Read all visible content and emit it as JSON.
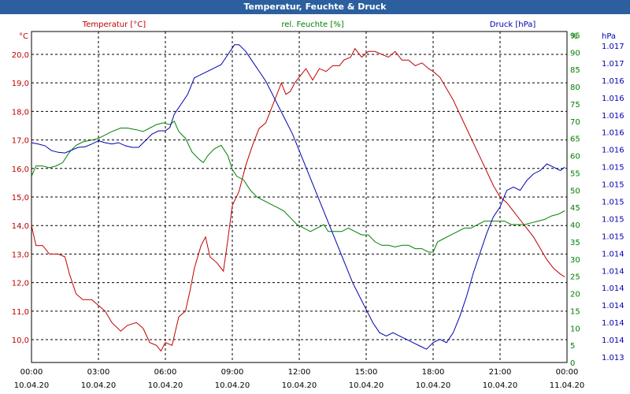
{
  "chart_data": {
    "type": "line",
    "title": "Temperatur, Feuchte & Druck",
    "x_tick_times": [
      "00:00",
      "03:00",
      "06:00",
      "09:00",
      "12:00",
      "15:00",
      "18:00",
      "21:00",
      "00:00"
    ],
    "x_tick_dates": [
      "10.04.20",
      "10.04.20",
      "10.04.20",
      "10.04.20",
      "10.04.20",
      "10.04.20",
      "10.04.20",
      "10.04.20",
      "11.04.20"
    ],
    "x_range_hours": [
      0,
      24
    ],
    "grid": true,
    "axes": {
      "temperature": {
        "label": "Temperatur [°C]",
        "unit": "°C",
        "ticks": [
          "10,0",
          "11,0",
          "12,0",
          "13,0",
          "14,0",
          "15,0",
          "16,0",
          "17,0",
          "18,0",
          "19,0",
          "20,0"
        ],
        "range": [
          9.2,
          20.8
        ],
        "color": "#c00000"
      },
      "humidity": {
        "label": "rel. Feuchte [%]",
        "unit": "%",
        "ticks": [
          "0",
          "5",
          "10",
          "15",
          "20",
          "25",
          "30",
          "35",
          "40",
          "45",
          "50",
          "55",
          "60",
          "65",
          "70",
          "75",
          "80",
          "85",
          "90",
          "95"
        ],
        "range": [
          0,
          96
        ],
        "color": "#008000"
      },
      "pressure": {
        "label": "Druck [hPa]",
        "unit": "hPa",
        "ticks": [
          "1.013",
          "1.014",
          "1.014",
          "1.014",
          "1.014",
          "1.014",
          "1.014",
          "1.015",
          "1.015",
          "1.015",
          "1.015",
          "1.015",
          "1.016",
          "1.016",
          "1.016",
          "1.016",
          "1.016",
          "1.017",
          "1.017"
        ],
        "color": "#0000b0"
      }
    },
    "series": [
      {
        "name": "Temperatur [°C]",
        "axis": "temperature",
        "color": "#c00000",
        "points": [
          [
            0,
            14.0
          ],
          [
            0.2,
            13.3
          ],
          [
            0.5,
            13.3
          ],
          [
            0.8,
            13.0
          ],
          [
            1.2,
            13.0
          ],
          [
            1.5,
            12.9
          ],
          [
            1.7,
            12.3
          ],
          [
            2.0,
            11.6
          ],
          [
            2.3,
            11.4
          ],
          [
            2.7,
            11.4
          ],
          [
            3.0,
            11.2
          ],
          [
            3.3,
            11.0
          ],
          [
            3.6,
            10.6
          ],
          [
            4.0,
            10.3
          ],
          [
            4.3,
            10.5
          ],
          [
            4.7,
            10.6
          ],
          [
            5.0,
            10.4
          ],
          [
            5.3,
            9.9
          ],
          [
            5.6,
            9.8
          ],
          [
            5.8,
            9.6
          ],
          [
            6.0,
            9.9
          ],
          [
            6.3,
            9.8
          ],
          [
            6.6,
            10.8
          ],
          [
            6.9,
            11.0
          ],
          [
            7.1,
            11.7
          ],
          [
            7.3,
            12.5
          ],
          [
            7.6,
            13.3
          ],
          [
            7.8,
            13.6
          ],
          [
            8.0,
            12.9
          ],
          [
            8.3,
            12.7
          ],
          [
            8.6,
            12.4
          ],
          [
            8.8,
            13.5
          ],
          [
            9.0,
            14.7
          ],
          [
            9.3,
            15.2
          ],
          [
            9.6,
            16.1
          ],
          [
            9.9,
            16.8
          ],
          [
            10.2,
            17.4
          ],
          [
            10.5,
            17.6
          ],
          [
            10.8,
            18.2
          ],
          [
            11.0,
            18.6
          ],
          [
            11.2,
            19.0
          ],
          [
            11.4,
            18.6
          ],
          [
            11.6,
            18.7
          ],
          [
            11.8,
            19.0
          ],
          [
            12.0,
            19.2
          ],
          [
            12.3,
            19.5
          ],
          [
            12.6,
            19.1
          ],
          [
            12.9,
            19.5
          ],
          [
            13.2,
            19.4
          ],
          [
            13.5,
            19.6
          ],
          [
            13.8,
            19.6
          ],
          [
            14.0,
            19.8
          ],
          [
            14.3,
            19.9
          ],
          [
            14.5,
            20.2
          ],
          [
            14.8,
            19.9
          ],
          [
            15.1,
            20.1
          ],
          [
            15.4,
            20.1
          ],
          [
            15.7,
            20.0
          ],
          [
            16.0,
            19.9
          ],
          [
            16.3,
            20.1
          ],
          [
            16.6,
            19.8
          ],
          [
            16.9,
            19.8
          ],
          [
            17.2,
            19.6
          ],
          [
            17.5,
            19.7
          ],
          [
            17.8,
            19.5
          ],
          [
            18.0,
            19.4
          ],
          [
            18.3,
            19.2
          ],
          [
            18.6,
            18.8
          ],
          [
            18.9,
            18.4
          ],
          [
            19.2,
            17.9
          ],
          [
            19.5,
            17.4
          ],
          [
            19.8,
            16.9
          ],
          [
            20.1,
            16.4
          ],
          [
            20.4,
            15.9
          ],
          [
            20.7,
            15.4
          ],
          [
            21.0,
            15.0
          ],
          [
            21.3,
            14.8
          ],
          [
            21.6,
            14.5
          ],
          [
            21.9,
            14.2
          ],
          [
            22.2,
            13.9
          ],
          [
            22.5,
            13.6
          ],
          [
            22.8,
            13.2
          ],
          [
            23.1,
            12.8
          ],
          [
            23.4,
            12.5
          ],
          [
            23.7,
            12.3
          ],
          [
            23.9,
            12.2
          ]
        ]
      },
      {
        "name": "rel. Feuchte [%]",
        "axis": "humidity",
        "color": "#008000",
        "points": [
          [
            0,
            54
          ],
          [
            0.2,
            57
          ],
          [
            0.5,
            57
          ],
          [
            0.8,
            56.5
          ],
          [
            1.1,
            57
          ],
          [
            1.4,
            58
          ],
          [
            1.7,
            61
          ],
          [
            2.0,
            63
          ],
          [
            2.3,
            64
          ],
          [
            2.7,
            64.5
          ],
          [
            3.0,
            65
          ],
          [
            3.3,
            66
          ],
          [
            3.6,
            67
          ],
          [
            4.0,
            68
          ],
          [
            4.3,
            68
          ],
          [
            4.7,
            67.5
          ],
          [
            5.0,
            67
          ],
          [
            5.3,
            68
          ],
          [
            5.6,
            69
          ],
          [
            5.9,
            69.5
          ],
          [
            6.2,
            69
          ],
          [
            6.4,
            70
          ],
          [
            6.6,
            67
          ],
          [
            6.9,
            65
          ],
          [
            7.2,
            61
          ],
          [
            7.5,
            59
          ],
          [
            7.7,
            58
          ],
          [
            7.9,
            60
          ],
          [
            8.2,
            62
          ],
          [
            8.5,
            63
          ],
          [
            8.8,
            60
          ],
          [
            9.0,
            56
          ],
          [
            9.2,
            54
          ],
          [
            9.5,
            53
          ],
          [
            9.8,
            50
          ],
          [
            10.1,
            48
          ],
          [
            10.4,
            47
          ],
          [
            10.7,
            46
          ],
          [
            11.0,
            45
          ],
          [
            11.3,
            44
          ],
          [
            11.6,
            42
          ],
          [
            11.9,
            40
          ],
          [
            12.2,
            39
          ],
          [
            12.5,
            38
          ],
          [
            12.8,
            39
          ],
          [
            13.1,
            40
          ],
          [
            13.3,
            38
          ],
          [
            13.6,
            38
          ],
          [
            13.9,
            38
          ],
          [
            14.2,
            39
          ],
          [
            14.5,
            38
          ],
          [
            14.8,
            37
          ],
          [
            15.1,
            37
          ],
          [
            15.4,
            35
          ],
          [
            15.7,
            34
          ],
          [
            16.0,
            34
          ],
          [
            16.3,
            33.5
          ],
          [
            16.6,
            34
          ],
          [
            16.9,
            34
          ],
          [
            17.2,
            33
          ],
          [
            17.5,
            33
          ],
          [
            17.8,
            32
          ],
          [
            18.0,
            32
          ],
          [
            18.2,
            35
          ],
          [
            18.5,
            36
          ],
          [
            18.8,
            37
          ],
          [
            19.1,
            38
          ],
          [
            19.4,
            39
          ],
          [
            19.7,
            39
          ],
          [
            20.0,
            40
          ],
          [
            20.3,
            41
          ],
          [
            20.6,
            41
          ],
          [
            20.9,
            41
          ],
          [
            21.2,
            41
          ],
          [
            21.5,
            40
          ],
          [
            21.8,
            40
          ],
          [
            22.1,
            40
          ],
          [
            22.4,
            40.5
          ],
          [
            22.7,
            41
          ],
          [
            23.0,
            41.5
          ],
          [
            23.3,
            42.5
          ],
          [
            23.6,
            43
          ],
          [
            23.9,
            44
          ]
        ]
      },
      {
        "name": "Druck [hPa]",
        "axis": "pressure",
        "color": "#0000b0",
        "note_scale": "pressure tick labels are rounded; relative plotted level 0-1 across axis",
        "points": [
          [
            0,
            0.664
          ],
          [
            0.3,
            0.66
          ],
          [
            0.6,
            0.655
          ],
          [
            0.9,
            0.64
          ],
          [
            1.2,
            0.635
          ],
          [
            1.5,
            0.633
          ],
          [
            1.8,
            0.642
          ],
          [
            2.1,
            0.65
          ],
          [
            2.4,
            0.652
          ],
          [
            2.7,
            0.66
          ],
          [
            3.0,
            0.67
          ],
          [
            3.3,
            0.664
          ],
          [
            3.6,
            0.66
          ],
          [
            3.9,
            0.664
          ],
          [
            4.2,
            0.655
          ],
          [
            4.5,
            0.65
          ],
          [
            4.8,
            0.65
          ],
          [
            5.1,
            0.67
          ],
          [
            5.4,
            0.69
          ],
          [
            5.7,
            0.7
          ],
          [
            6.0,
            0.7
          ],
          [
            6.2,
            0.71
          ],
          [
            6.4,
            0.75
          ],
          [
            6.7,
            0.78
          ],
          [
            7.0,
            0.81
          ],
          [
            7.3,
            0.86
          ],
          [
            7.6,
            0.87
          ],
          [
            7.9,
            0.88
          ],
          [
            8.2,
            0.89
          ],
          [
            8.5,
            0.9
          ],
          [
            8.8,
            0.93
          ],
          [
            9.1,
            0.96
          ],
          [
            9.3,
            0.96
          ],
          [
            9.6,
            0.94
          ],
          [
            9.9,
            0.91
          ],
          [
            10.2,
            0.88
          ],
          [
            10.5,
            0.85
          ],
          [
            10.8,
            0.81
          ],
          [
            11.1,
            0.77
          ],
          [
            11.4,
            0.73
          ],
          [
            11.7,
            0.69
          ],
          [
            12.0,
            0.64
          ],
          [
            12.3,
            0.59
          ],
          [
            12.6,
            0.54
          ],
          [
            12.9,
            0.49
          ],
          [
            13.2,
            0.44
          ],
          [
            13.5,
            0.39
          ],
          [
            13.8,
            0.34
          ],
          [
            14.1,
            0.29
          ],
          [
            14.4,
            0.24
          ],
          [
            14.7,
            0.2
          ],
          [
            15.0,
            0.16
          ],
          [
            15.3,
            0.12
          ],
          [
            15.6,
            0.09
          ],
          [
            15.9,
            0.08
          ],
          [
            16.2,
            0.09
          ],
          [
            16.5,
            0.08
          ],
          [
            16.8,
            0.07
          ],
          [
            17.1,
            0.06
          ],
          [
            17.4,
            0.05
          ],
          [
            17.7,
            0.04
          ],
          [
            18.0,
            0.06
          ],
          [
            18.3,
            0.07
          ],
          [
            18.6,
            0.06
          ],
          [
            18.9,
            0.09
          ],
          [
            19.2,
            0.14
          ],
          [
            19.5,
            0.2
          ],
          [
            19.8,
            0.27
          ],
          [
            20.1,
            0.33
          ],
          [
            20.4,
            0.39
          ],
          [
            20.7,
            0.44
          ],
          [
            21.0,
            0.47
          ],
          [
            21.3,
            0.52
          ],
          [
            21.6,
            0.53
          ],
          [
            21.9,
            0.52
          ],
          [
            22.2,
            0.55
          ],
          [
            22.5,
            0.57
          ],
          [
            22.8,
            0.58
          ],
          [
            23.1,
            0.6
          ],
          [
            23.4,
            0.59
          ],
          [
            23.7,
            0.58
          ],
          [
            23.9,
            0.59
          ]
        ]
      }
    ]
  }
}
